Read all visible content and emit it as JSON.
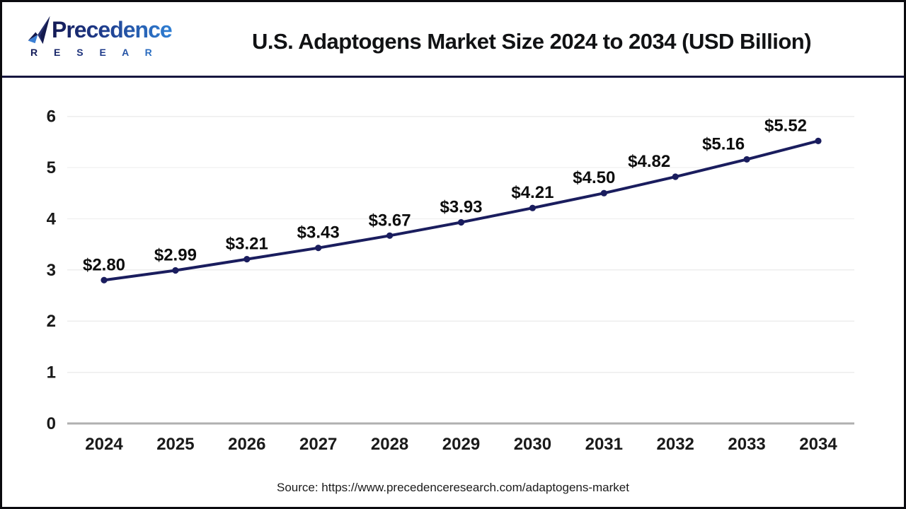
{
  "header": {
    "logo_text": "Precedence",
    "logo_subtext": "R E S E A R C H"
  },
  "source": {
    "text": "Source: https://www.precedenceresearch.com/adaptogens-market"
  },
  "colors": {
    "series": "#1a1d5e",
    "marker": "#1a1d5e",
    "grid": "#ededed",
    "baseline": "#b0b0b0",
    "axis_text": "#1a1a1a",
    "point_label_text": "#0d0d0d",
    "divider": "#16163f",
    "logo_dark": "#141a55",
    "logo_light": "#2f7fd4"
  },
  "chart_data": {
    "type": "line",
    "title": "U.S. Adaptogens Market Size 2024 to 2034 (USD Billion)",
    "categories": [
      "2024",
      "2025",
      "2026",
      "2027",
      "2028",
      "2029",
      "2030",
      "2031",
      "2032",
      "2033",
      "2034"
    ],
    "values": [
      2.8,
      2.99,
      3.21,
      3.43,
      3.67,
      3.93,
      4.21,
      4.5,
      4.82,
      5.16,
      5.52
    ],
    "point_labels": [
      "$2.80",
      "$2.99",
      "$3.21",
      "$3.43",
      "$3.67",
      "$3.93",
      "$4.21",
      "$4.50",
      "$4.82",
      "$5.16",
      "$5.52"
    ],
    "xlabel": "",
    "ylabel": "",
    "ylim": [
      0,
      6
    ],
    "y_ticks": [
      0,
      1,
      2,
      3,
      4,
      5,
      6
    ],
    "grid": "horizontal",
    "legend": false,
    "marker": "circle"
  }
}
